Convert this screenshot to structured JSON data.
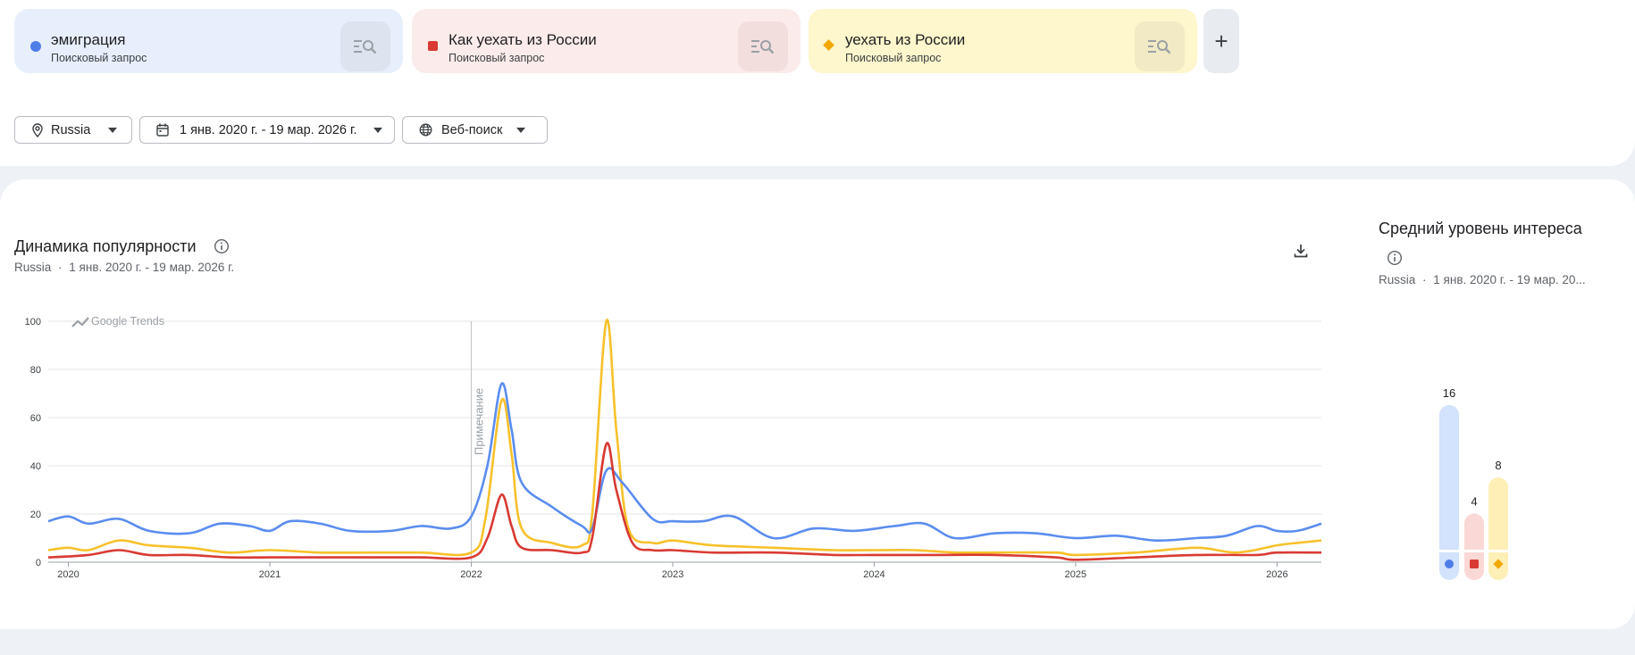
{
  "terms": [
    {
      "name": "эмиграция",
      "type": "Поисковый запрос",
      "color": "#4d7ee8",
      "marker": "dot",
      "bg": "#e8effc",
      "btn_bg": "#dde4f0"
    },
    {
      "name": "Как уехать из России",
      "type": "Поисковый запрос",
      "color": "#d93a33",
      "marker": "square",
      "bg": "#fcebeb",
      "btn_bg": "#f3dede"
    },
    {
      "name": "уехать из России",
      "type": "Поисковый запрос",
      "color": "#f2a900",
      "marker": "diamond",
      "bg": "#fef6cc",
      "btn_bg": "#f2eac4"
    }
  ],
  "add_term_label": "+",
  "filters": {
    "region": "Russia",
    "date_range": "1 янв. 2020 г. - 19 мар. 2026 г.",
    "search_type": "Веб-поиск"
  },
  "trend": {
    "title": "Динамика популярности",
    "region": "Russia",
    "separator": "·",
    "date_range": "1 янв. 2020 г. - 19 мар. 2026 г."
  },
  "average": {
    "title": "Средний уровень интереса",
    "region": "Russia",
    "separator": "·",
    "date_range": "1 янв. 2020 г. - 19 мар. 20..."
  },
  "chart_data": {
    "type": "line",
    "watermark": "Google Trends",
    "annotation": "Примечание",
    "annotation_x": 2022.0,
    "x_ticks": [
      2020,
      2021,
      2022,
      2023,
      2024,
      2025,
      2026
    ],
    "y_ticks": [
      0,
      20,
      40,
      60,
      80,
      100
    ],
    "ylim": [
      0,
      100
    ],
    "xlim": [
      2019.9,
      2026.22
    ],
    "grid": true,
    "series": [
      {
        "name": "эмиграция",
        "color": "#5b8def",
        "x": [
          2019.9,
          2020.0,
          2020.1,
          2020.25,
          2020.4,
          2020.6,
          2020.75,
          2020.9,
          2021.0,
          2021.1,
          2021.25,
          2021.4,
          2021.6,
          2021.75,
          2021.9,
          2022.0,
          2022.08,
          2022.15,
          2022.2,
          2022.25,
          2022.4,
          2022.55,
          2022.6,
          2022.67,
          2022.75,
          2022.9,
          2023.0,
          2023.15,
          2023.3,
          2023.5,
          2023.7,
          2023.9,
          2024.1,
          2024.25,
          2024.4,
          2024.6,
          2024.8,
          2025.0,
          2025.2,
          2025.4,
          2025.6,
          2025.75,
          2025.9,
          2026.0,
          2026.1,
          2026.22
        ],
        "y": [
          17,
          19,
          16,
          18,
          13,
          12,
          16,
          15,
          13,
          17,
          16,
          13,
          13,
          15,
          14,
          19,
          40,
          74,
          55,
          33,
          23,
          15,
          14,
          38,
          33,
          18,
          17,
          17,
          19,
          10,
          14,
          13,
          15,
          16,
          10,
          12,
          12,
          10,
          11,
          9,
          10,
          11,
          15,
          13,
          13,
          16
        ]
      },
      {
        "name": "Как уехать из России",
        "color": "#d93a33",
        "x": [
          2019.9,
          2020.1,
          2020.25,
          2020.4,
          2020.6,
          2020.8,
          2021.0,
          2021.25,
          2021.5,
          2021.75,
          2022.0,
          2022.08,
          2022.15,
          2022.2,
          2022.25,
          2022.4,
          2022.55,
          2022.6,
          2022.67,
          2022.72,
          2022.8,
          2022.9,
          2023.0,
          2023.2,
          2023.5,
          2023.8,
          2024.0,
          2024.3,
          2024.6,
          2024.9,
          2025.0,
          2025.3,
          2025.6,
          2025.9,
          2026.0,
          2026.22
        ],
        "y": [
          2,
          3,
          5,
          3,
          3,
          2,
          2,
          2,
          2,
          2,
          2,
          10,
          28,
          15,
          6,
          5,
          4,
          10,
          49,
          30,
          8,
          5,
          5,
          4,
          4,
          3,
          3,
          3,
          3,
          2,
          1,
          2,
          3,
          3,
          4,
          4
        ]
      },
      {
        "name": "уехать из России",
        "color": "#f7c12a",
        "x": [
          2019.9,
          2020.0,
          2020.1,
          2020.25,
          2020.4,
          2020.6,
          2020.8,
          2021.0,
          2021.25,
          2021.5,
          2021.75,
          2022.0,
          2022.07,
          2022.15,
          2022.2,
          2022.25,
          2022.4,
          2022.55,
          2022.6,
          2022.67,
          2022.72,
          2022.78,
          2022.9,
          2023.0,
          2023.2,
          2023.5,
          2023.8,
          2024.0,
          2024.2,
          2024.4,
          2024.6,
          2024.9,
          2025.0,
          2025.3,
          2025.6,
          2025.8,
          2026.0,
          2026.1,
          2026.22
        ],
        "y": [
          5,
          6,
          5,
          9,
          7,
          6,
          4,
          5,
          4,
          4,
          4,
          4,
          18,
          67,
          45,
          14,
          8,
          7,
          20,
          100,
          55,
          14,
          8,
          9,
          7,
          6,
          5,
          5,
          5,
          4,
          4,
          4,
          3,
          4,
          6,
          4,
          7,
          8,
          9
        ]
      }
    ]
  },
  "averages": [
    {
      "name": "эмиграция",
      "value": 16,
      "color": "#4d7ee8",
      "bg": "#d3e2fd",
      "marker": "dot"
    },
    {
      "name": "Как уехать из России",
      "value": 4,
      "color": "#d93a33",
      "bg": "#fad8d6",
      "marker": "square"
    },
    {
      "name": "уехать из России",
      "value": 8,
      "color": "#f2a900",
      "bg": "#feefb7",
      "marker": "diamond"
    }
  ]
}
